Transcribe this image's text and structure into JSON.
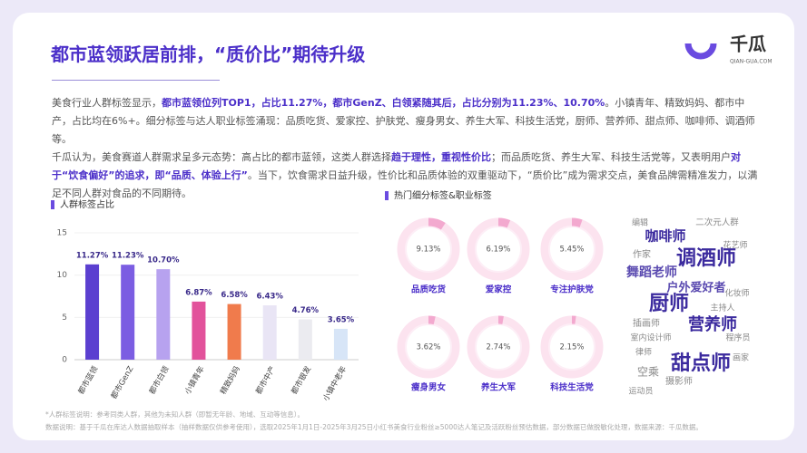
{
  "header": {
    "title": "都市蓝领跃居前排，“质价比”期待升级",
    "logo": "千瓜",
    "logo_sub": "QIAN-GUA.COM"
  },
  "body": [
    [
      {
        "text": "美食行业人群标签显示，",
        "bold": false
      },
      {
        "text": "都市蓝领位列TOP1，占比11.27%，都市GenZ、白领紧随其后，占比分别为11.23%、10.70%",
        "bold": true
      },
      {
        "text": "。小镇青年、精致妈妈、都市中产，占比均在6%+。细分标签与达人职业标签涌现：品质吃货、爱家控、护肤党、瘦身男女、养生大军、科技生活党，厨师、营养师、甜点师、咖啡师、调酒师等。",
        "bold": false
      }
    ],
    [
      {
        "text": "千瓜认为，美食赛道人群需求呈多元态势：高占比的都市蓝领，这类人群选择",
        "bold": false
      },
      {
        "text": "趋于理性，重视性价比",
        "bold": true
      },
      {
        "text": "；而品质吃货、养生大军、科技生活党等，又表明用户",
        "bold": false
      },
      {
        "text": "对于“饮食偏好”的追求，即“品质、体验上行”",
        "bold": true
      },
      {
        "text": "。当下，饮食需求日益升级，性价比和品质体验的双重驱动下，“质价比”成为需求交点，美食品牌需精准发力，以满足不同人群对食品的不同期待。",
        "bold": false
      }
    ]
  ],
  "chart_data": [
    {
      "type": "bar",
      "title": "人群标签占比",
      "categories": [
        "都市蓝领",
        "都市GenZ",
        "都市白领",
        "小镇青年",
        "精致妈妈",
        "都市中产",
        "都市银发",
        "小镇中老年"
      ],
      "values": [
        11.27,
        11.23,
        10.7,
        6.87,
        6.58,
        6.43,
        4.76,
        3.65
      ],
      "value_labels": [
        "11.27%",
        "11.23%",
        "10.70%",
        "6.87%",
        "6.58%",
        "6.43%",
        "4.76%",
        "3.65%"
      ],
      "colors": [
        "#5b3fd0",
        "#7b5de2",
        "#b7a2ef",
        "#e2529b",
        "#f07b4c",
        "#e9e5f5",
        "#ebebf0",
        "#d7e5f7"
      ],
      "ylim": [
        0,
        15
      ],
      "yticks": [
        0,
        5,
        10,
        15
      ]
    },
    {
      "type": "donut",
      "title": "热门细分标签&职业标签",
      "categories": [
        "品质吃货",
        "爱家控",
        "专注护肤党",
        "瘦身男女",
        "养生大军",
        "科技生活党"
      ],
      "values": [
        9.13,
        6.19,
        5.45,
        3.62,
        2.74,
        2.15
      ],
      "value_labels": [
        "9.13%",
        "6.19%",
        "5.45%",
        "3.62%",
        "2.74%",
        "2.15%"
      ],
      "color": "#f3a9cf"
    }
  ],
  "word_cloud": {
    "words": [
      "编辑",
      "二次元人群",
      "咖啡师",
      "花艺师",
      "调酒师",
      "作家",
      "舞蹈老师",
      "户外爱好者",
      "化妆师",
      "厨师",
      "主持人",
      "营养师",
      "插画师",
      "室内设计师",
      "程序员",
      "律师",
      "甜点师",
      "画家",
      "空乘",
      "摄影师",
      "运动员"
    ]
  },
  "footnotes": [
    "*人群标签说明：参考同类人群，其他为未知人群（即暂无年龄、地域、互动等信息）。",
    "数据说明：基于千瓜在库达人数据抽取样本（抽样数据仅供参考使用），选取2025年1月1日-2025年3月25日小红书美食行业粉丝≥5000达人笔记及活跃粉丝预估数据，部分数据已做脱敏化处理，数据来源：千瓜数据。"
  ]
}
